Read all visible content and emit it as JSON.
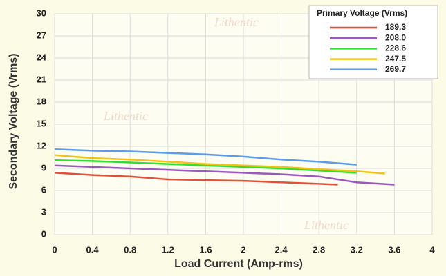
{
  "chart_data": {
    "type": "line",
    "watermark": "Lithentic",
    "x_label": "Load Current (Amp-rms)",
    "y_label": "Secondary Voltage (Vrms)",
    "legend_title": "Primary Voltage (Vrms)",
    "legend": "top-right",
    "grid": true,
    "xlim": [
      0,
      4
    ],
    "xticks": [
      0,
      0.4,
      0.8,
      1.2,
      1.6,
      2,
      2.4,
      2.8,
      3.2,
      3.6,
      4
    ],
    "ylim": [
      0,
      30
    ],
    "yticks": [
      0,
      3,
      6,
      9,
      12,
      15,
      18,
      21,
      24,
      27,
      30
    ],
    "series": [
      {
        "name": "189.3",
        "color": "#e0513a",
        "x": [
          0,
          0.4,
          0.8,
          1.2,
          1.6,
          2.0,
          2.4,
          2.8,
          3.0
        ],
        "values": [
          8.4,
          8.1,
          7.9,
          7.5,
          7.4,
          7.3,
          7.1,
          6.9,
          6.8
        ]
      },
      {
        "name": "208.0",
        "color": "#9b59c0",
        "x": [
          0,
          0.4,
          0.8,
          1.2,
          1.6,
          2.0,
          2.4,
          2.8,
          3.2,
          3.6
        ],
        "values": [
          9.4,
          9.2,
          9.0,
          8.8,
          8.6,
          8.4,
          8.2,
          7.9,
          7.1,
          6.8
        ]
      },
      {
        "name": "228.6",
        "color": "#2ee02e",
        "x": [
          0,
          0.4,
          0.8,
          1.2,
          1.6,
          2.0,
          2.4,
          2.8,
          3.2
        ],
        "values": [
          10.1,
          10.0,
          9.8,
          9.6,
          9.4,
          9.2,
          9.0,
          8.7,
          8.4
        ]
      },
      {
        "name": "247.5",
        "color": "#f2c21a",
        "x": [
          0,
          0.4,
          0.8,
          1.2,
          1.6,
          2.0,
          2.4,
          2.8,
          3.2,
          3.5
        ],
        "values": [
          10.8,
          10.4,
          10.2,
          9.9,
          9.6,
          9.4,
          9.2,
          8.9,
          8.6,
          8.3
        ]
      },
      {
        "name": "269.7",
        "color": "#5b9bea",
        "x": [
          0,
          0.4,
          0.8,
          1.2,
          1.6,
          2.0,
          2.4,
          2.8,
          3.2
        ],
        "values": [
          11.6,
          11.4,
          11.3,
          11.1,
          10.9,
          10.6,
          10.2,
          9.9,
          9.5
        ]
      }
    ]
  }
}
